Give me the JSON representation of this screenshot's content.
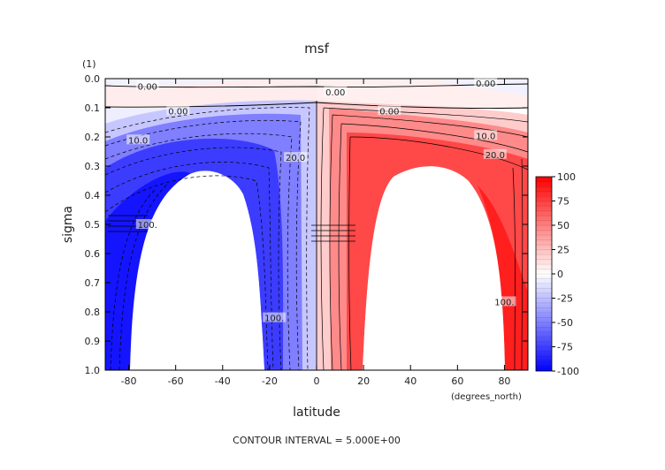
{
  "chart_data": {
    "type": "heatmap",
    "title": "msf",
    "xlabel": "latitude",
    "ylabel": "sigma",
    "x_units": "(degrees_north)",
    "y_units": "(1)",
    "xlim": [
      -90,
      90
    ],
    "ylim": [
      0.0,
      1.0
    ],
    "y_inverted": true,
    "x_ticks": [
      -80,
      -60,
      -40,
      -20,
      0,
      20,
      40,
      60,
      80
    ],
    "y_ticks": [
      "0.0",
      "0.1",
      "0.2",
      "0.3",
      "0.4",
      "0.5",
      "0.6",
      "0.7",
      "0.8",
      "0.9",
      "1.0"
    ],
    "colorbar": {
      "ticks": [
        100,
        75,
        50,
        25,
        0,
        -25,
        -50,
        -75,
        -100
      ],
      "colors": [
        "#ff0000",
        "#ffffff",
        "#0000ff"
      ],
      "range": [
        -100,
        100
      ]
    },
    "contour_labels": [
      {
        "text": "0.00",
        "x": -72,
        "y": 0.025
      },
      {
        "text": "0.00",
        "x": 8,
        "y": 0.045
      },
      {
        "text": "0.00",
        "x": 72,
        "y": 0.015
      },
      {
        "text": "0.00",
        "x": -59,
        "y": 0.11
      },
      {
        "text": "0.00",
        "x": 31,
        "y": 0.11
      },
      {
        "text": "10.0",
        "x": -76,
        "y": 0.21
      },
      {
        "text": "10.0",
        "x": 72,
        "y": 0.195
      },
      {
        "text": "20.0",
        "x": -9,
        "y": 0.27
      },
      {
        "text": "20.0",
        "x": 76,
        "y": 0.26
      },
      {
        "text": "100.",
        "x": -72,
        "y": 0.5
      },
      {
        "text": "100.",
        "x": 80,
        "y": 0.765
      },
      {
        "text": "100.",
        "x": -18,
        "y": 0.82
      }
    ],
    "footer": "CONTOUR INTERVAL = 5.000E+00",
    "grid": false
  }
}
